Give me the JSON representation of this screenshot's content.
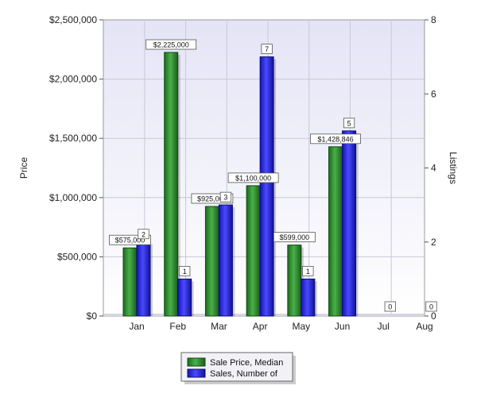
{
  "chart_data": {
    "type": "bar",
    "categories": [
      "Jan",
      "Feb",
      "Mar",
      "Apr",
      "May",
      "Jun",
      "Jul",
      "Aug"
    ],
    "series": [
      {
        "name": "Sale Price, Median",
        "axis": "left",
        "color": "#2e8b2e",
        "values": [
          575000,
          2225000,
          925000,
          1100000,
          599000,
          1428846,
          null,
          null
        ],
        "labels": [
          "$575,000",
          "$2,225,000",
          "$925,000",
          "$1,100,000",
          "$599,000",
          "$1,428,846",
          "",
          ""
        ]
      },
      {
        "name": "Sales, Number of",
        "axis": "right",
        "color": "#2323e6",
        "values": [
          2,
          1,
          3,
          7,
          1,
          5,
          0,
          0
        ],
        "labels": [
          "2",
          "1",
          "3",
          "7",
          "1",
          "5",
          "0",
          "0"
        ]
      }
    ],
    "ylabel_left": "Price",
    "ylabel_right": "Listings",
    "ylim_left": [
      0,
      2500000
    ],
    "ylim_right": [
      0,
      8
    ],
    "yticks_left": [
      "$0",
      "$500,000",
      "$1,000,000",
      "$1,500,000",
      "$2,000,000",
      "$2,500,000"
    ],
    "yticks_right": [
      "0",
      "2",
      "4",
      "6",
      "8"
    ],
    "grid": true,
    "legend": "bottom-center",
    "colors": {
      "plot_background_top": "#e4e4f6",
      "plot_background_bottom": "#ffffff",
      "grid": "#c8c8d8"
    }
  }
}
